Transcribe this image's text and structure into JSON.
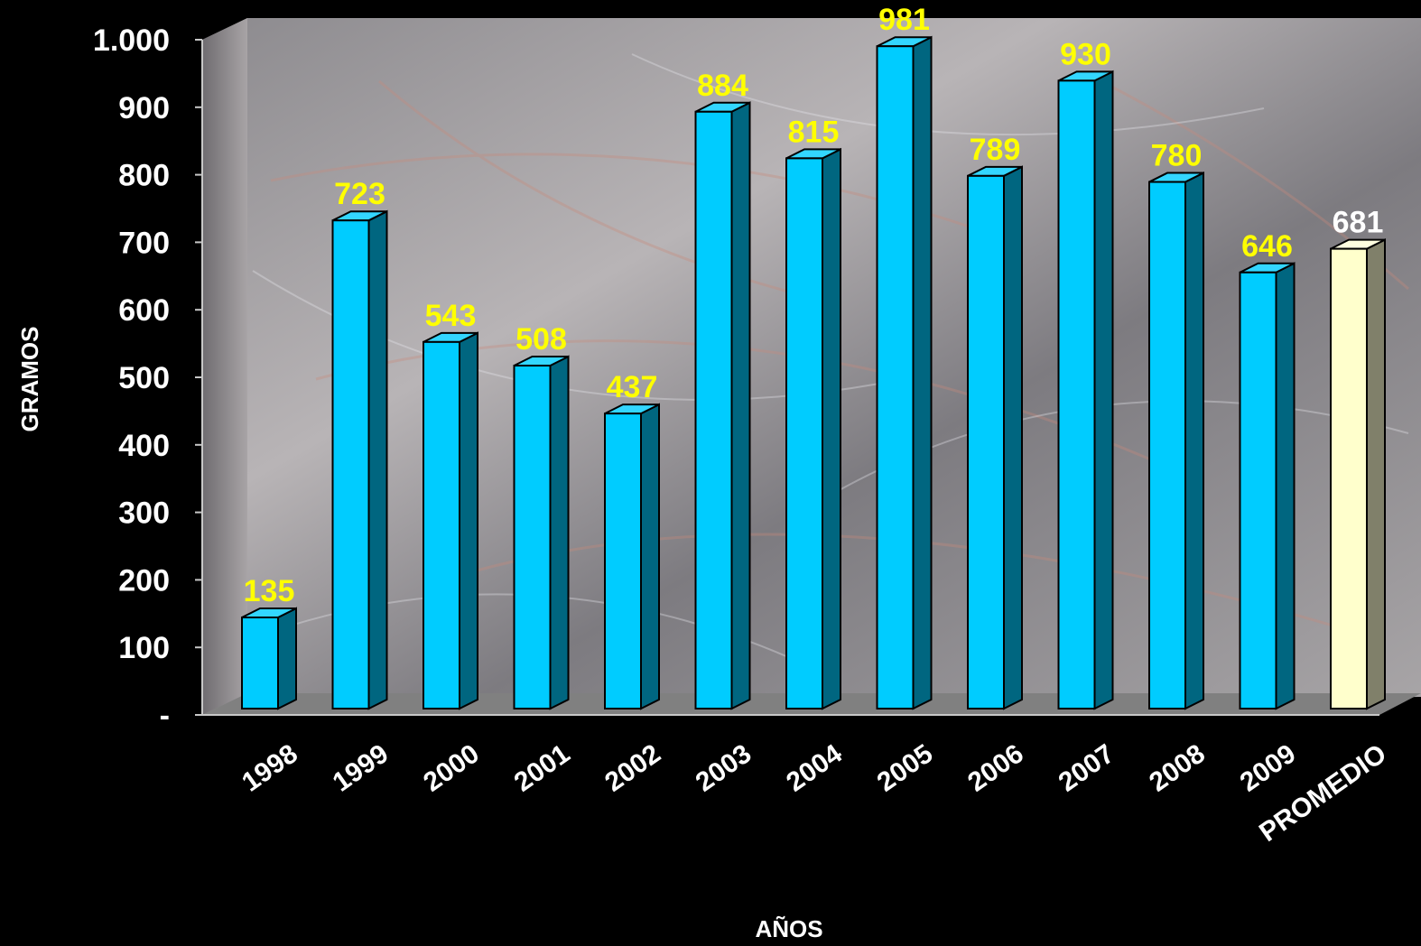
{
  "chart_data": {
    "type": "bar",
    "xlabel": "AÑOS",
    "ylabel": "GRAMOS",
    "ylim": [
      0,
      1000
    ],
    "yticks": [
      {
        "value": 0,
        "label": "-"
      },
      {
        "value": 100,
        "label": "100"
      },
      {
        "value": 200,
        "label": "200"
      },
      {
        "value": 300,
        "label": "300"
      },
      {
        "value": 400,
        "label": "400"
      },
      {
        "value": 500,
        "label": "500"
      },
      {
        "value": 600,
        "label": "600"
      },
      {
        "value": 700,
        "label": "700"
      },
      {
        "value": 800,
        "label": "800"
      },
      {
        "value": 900,
        "label": "900"
      },
      {
        "value": 1000,
        "label": "1.000"
      }
    ],
    "categories": [
      "1998",
      "1999",
      "2000",
      "2001",
      "2002",
      "2003",
      "2004",
      "2005",
      "2006",
      "2007",
      "2008",
      "2009",
      "PROMEDIO"
    ],
    "values": [
      135,
      723,
      543,
      508,
      437,
      884,
      815,
      981,
      789,
      930,
      780,
      646,
      681
    ],
    "grid": false,
    "colors": {
      "bar_front": "#00CCFF",
      "bar_side": "#006680",
      "bar_top": "#33D6FF",
      "avg_front": "#FFFFCC",
      "avg_side": "#80806A",
      "avg_top": "#FFFFE0",
      "label_color": "#FFFF00",
      "avg_label_color": "#FFFFFF",
      "floor": "#808080"
    }
  }
}
